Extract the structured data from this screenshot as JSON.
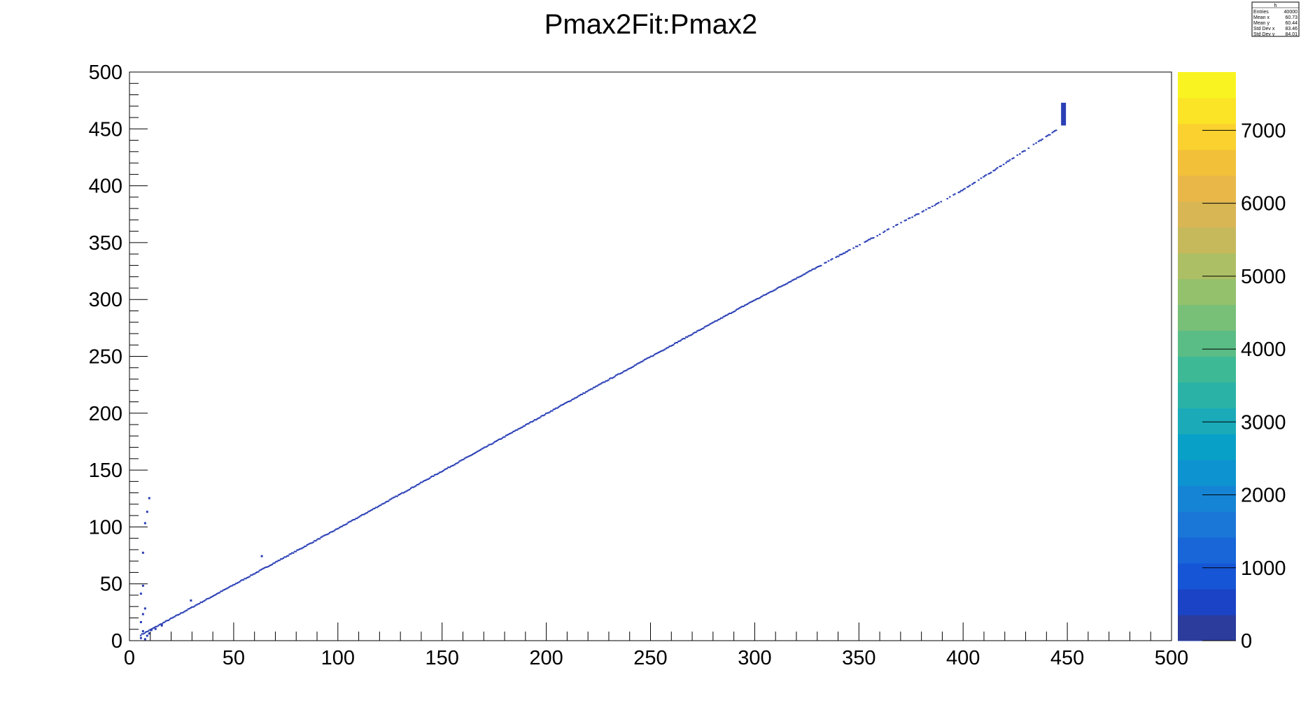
{
  "chart_data": {
    "type": "heatmap",
    "title": "Pmax2Fit:Pmax2",
    "xlabel": "",
    "ylabel": "",
    "xlim": [
      0,
      500
    ],
    "ylim": [
      0,
      500
    ],
    "x_ticks": [
      "0",
      "50",
      "100",
      "150",
      "200",
      "250",
      "300",
      "350",
      "400",
      "450",
      "500"
    ],
    "y_ticks": [
      "0",
      "50",
      "100",
      "150",
      "200",
      "250",
      "300",
      "350",
      "400",
      "450",
      "500"
    ],
    "grid": false,
    "series_color": "#2a3fb5",
    "density_band": {
      "description_free": true,
      "points": [
        {
          "x": 5,
          "y": 5
        },
        {
          "x": 100,
          "y": 99
        },
        {
          "x": 200,
          "y": 200
        },
        {
          "x": 300,
          "y": 300
        },
        {
          "x": 400,
          "y": 397
        },
        {
          "x": 445,
          "y": 450
        }
      ]
    },
    "cluster": {
      "x": 448,
      "y_min": 453,
      "y_max": 473
    },
    "colorbar": {
      "zlim": [
        0,
        7800
      ],
      "ticks": [
        "0",
        "1000",
        "2000",
        "3000",
        "4000",
        "5000",
        "6000",
        "7000"
      ],
      "colors": [
        "#2b3c9c",
        "#1a44c5",
        "#1656d6",
        "#1866d8",
        "#1a77d8",
        "#1584d4",
        "#0d93d0",
        "#09a0c8",
        "#1aaab8",
        "#2ab2a6",
        "#3db996",
        "#5abd85",
        "#78bf78",
        "#94c16c",
        "#adbf64",
        "#c6b95c",
        "#d8b653",
        "#e8b748",
        "#f3c03a",
        "#fad12e",
        "#fbe325",
        "#f9f421"
      ]
    },
    "stats_box": {
      "header": "h",
      "rows": [
        {
          "label": "Entries",
          "value": "40000"
        },
        {
          "label": "Mean x",
          "value": "60.73"
        },
        {
          "label": "Mean y",
          "value": "60.44"
        },
        {
          "label": "Std Dev x",
          "value": "83.46"
        },
        {
          "label": "Std Dev y",
          "value": "84.01"
        }
      ]
    }
  }
}
